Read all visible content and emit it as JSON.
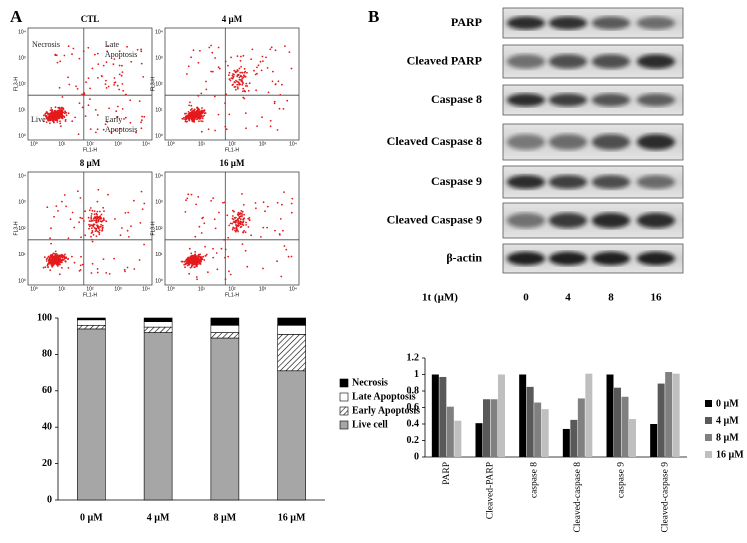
{
  "panels": {
    "a_label": "A",
    "b_label": "B",
    "flow": {
      "plots": [
        {
          "title": "CTL"
        },
        {
          "title": "4 µM"
        },
        {
          "title": "8 µM"
        },
        {
          "title": "16 µM"
        }
      ],
      "quadrants": [
        "Necrosis",
        "Late Apoptosis",
        "Live",
        "Early Apoptosis"
      ],
      "x_axis": "FL1-H",
      "y_axis": "FL3-H",
      "ticks": [
        "10⁰",
        "10¹",
        "10²",
        "10³",
        "10⁴"
      ]
    },
    "blot": {
      "rows": [
        "PARP",
        "Cleaved PARP",
        "Caspase 8",
        "Cleaved Caspase 8",
        "Caspase 9",
        "Cleaved Caspase 9",
        "β-actin"
      ],
      "dose_label": "1t (µM)",
      "doses": [
        "0",
        "4",
        "8",
        "16"
      ]
    }
  },
  "chart_data": [
    {
      "type": "stacked_bar",
      "categories": [
        "0 µM",
        "4 µM",
        "8 µM",
        "16 µM"
      ],
      "series": [
        {
          "name": "Live cell",
          "color": "#a6a6a6",
          "values": [
            94,
            92,
            89,
            71
          ]
        },
        {
          "name": "Early Apoptosis",
          "color": "#ffffff",
          "pattern": "hatch",
          "values": [
            2,
            3,
            3,
            20
          ]
        },
        {
          "name": "Late Apoptosis",
          "color": "#ffffff",
          "values": [
            3,
            3,
            4,
            5
          ]
        },
        {
          "name": "Necrosis",
          "color": "#000000",
          "values": [
            1,
            2,
            4,
            4
          ]
        }
      ],
      "ylim": [
        0,
        100
      ],
      "yticks": [
        0,
        20,
        40,
        60,
        80,
        100
      ],
      "grid": false,
      "legend": "right"
    },
    {
      "type": "grouped_bar",
      "categories": [
        "PARP",
        "Cleaved-PARP",
        "caspase 8",
        "Cleaved-caspase 8",
        "caspase 9",
        "Cleaved-caspase 9"
      ],
      "series": [
        {
          "name": "0 µM",
          "color": "#000000",
          "values": [
            1.0,
            0.41,
            1.0,
            0.34,
            1.0,
            0.4
          ]
        },
        {
          "name": "4 µM",
          "color": "#595959",
          "values": [
            0.97,
            0.7,
            0.85,
            0.45,
            0.84,
            0.89
          ]
        },
        {
          "name": "8 µM",
          "color": "#808080",
          "values": [
            0.61,
            0.7,
            0.66,
            0.71,
            0.73,
            1.03
          ]
        },
        {
          "name": "16 µM",
          "color": "#bfbfbf",
          "values": [
            0.44,
            1.0,
            0.58,
            1.01,
            0.46,
            1.01
          ]
        }
      ],
      "ylim": [
        0,
        1.2
      ],
      "yticks": [
        0,
        0.2,
        0.4,
        0.6,
        0.8,
        1,
        1.2
      ],
      "grid": false,
      "legend": "right"
    }
  ]
}
